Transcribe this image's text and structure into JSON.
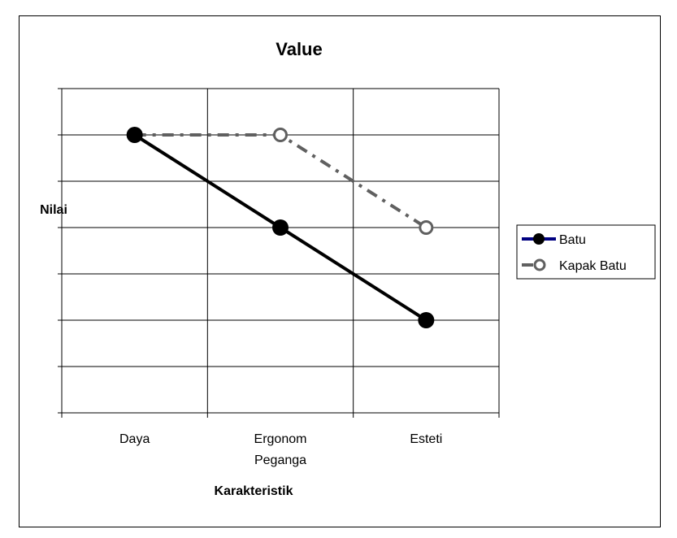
{
  "chart_data": {
    "type": "line",
    "title": "Value",
    "xlabel": "Karakteristik",
    "ylabel": "Nilai",
    "categories": [
      [
        "Daya"
      ],
      [
        "Ergonom",
        "Peganga"
      ],
      [
        "Esteti"
      ]
    ],
    "ylim": [
      0,
      7
    ],
    "yticks": [
      0,
      1,
      2,
      3,
      4,
      5,
      6,
      7
    ],
    "grid": true,
    "legend": "right",
    "series": [
      {
        "name": "Batu",
        "values": [
          6,
          4,
          2
        ],
        "color": "#000000",
        "legend_line_color": "#000080",
        "marker": "filled-circle",
        "dash": "solid"
      },
      {
        "name": "Kapak Batu",
        "values": [
          6,
          6,
          4
        ],
        "color": "#606060",
        "marker": "open-circle",
        "dash": "dash-dot"
      }
    ]
  }
}
